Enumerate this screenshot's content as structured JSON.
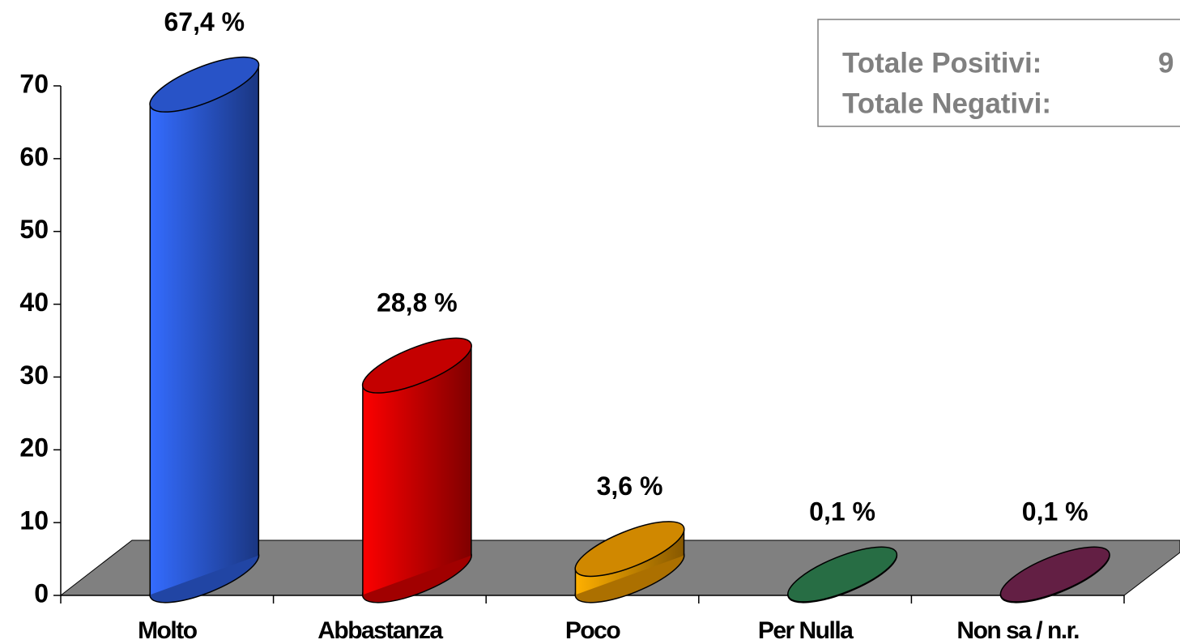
{
  "chart_data": {
    "type": "bar",
    "categories": [
      "Molto",
      "Abbastanza",
      "Poco",
      "Per Nulla",
      "Non sa / n.r."
    ],
    "values": [
      67.4,
      28.8,
      3.6,
      0.1,
      0.1
    ],
    "value_labels": [
      "67,4 %",
      "28,8 %",
      "3,6 %",
      "0,1 %",
      "0,1 %"
    ],
    "colors": [
      "#2f62ea",
      "#e60000",
      "#f5a000",
      "#2e8050",
      "#752550"
    ],
    "ylim": [
      0,
      70
    ],
    "yticks": [
      0,
      10,
      20,
      30,
      40,
      50,
      60,
      70
    ],
    "annotations": [
      "Totale Positivi:",
      "9",
      "Totale Negativi:"
    ]
  }
}
